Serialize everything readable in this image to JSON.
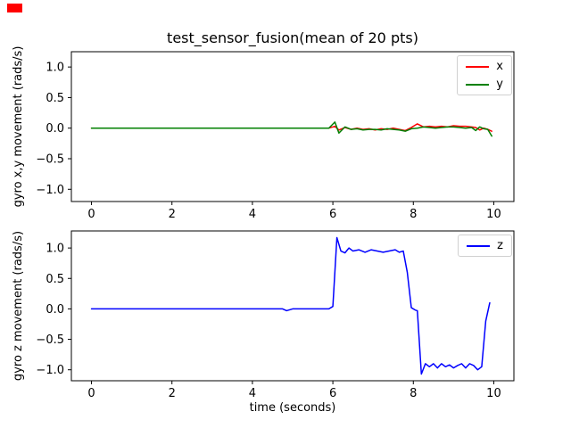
{
  "window": {
    "red_marker_color": "#ff0000"
  },
  "chart_data": [
    {
      "type": "line",
      "title": "test_sensor_fusion(mean of 20 pts)",
      "xlabel": "",
      "ylabel": "gyro x,y movement (rads/s)",
      "xlim": [
        -0.5,
        10.5
      ],
      "ylim": [
        -1.2,
        1.25
      ],
      "grid": false,
      "legend_position": "upper right",
      "xticks": [
        0,
        2,
        4,
        6,
        8,
        10
      ],
      "xticklabels": [
        "0",
        "2",
        "4",
        "6",
        "8",
        "10"
      ],
      "yticks": [
        -1.0,
        -0.5,
        0.0,
        0.5,
        1.0
      ],
      "yticklabels": [
        "−1.0",
        "−0.5",
        "0.0",
        "0.5",
        "1.0"
      ],
      "series": [
        {
          "name": "x",
          "color": "#ff0000",
          "x": [
            0,
            0.5,
            1,
            1.5,
            2,
            2.5,
            3,
            3.5,
            4,
            4.5,
            5,
            5.5,
            5.9,
            6.05,
            6.15,
            6.3,
            6.45,
            6.6,
            6.75,
            6.9,
            7.05,
            7.2,
            7.35,
            7.5,
            7.65,
            7.8,
            7.95,
            8.1,
            8.25,
            8.4,
            8.55,
            8.7,
            8.85,
            9.0,
            9.15,
            9.3,
            9.45,
            9.55,
            9.65,
            9.75,
            9.85,
            9.95
          ],
          "y": [
            0,
            0,
            0,
            0,
            0,
            0,
            0,
            0,
            0,
            0,
            0,
            0,
            0,
            0.03,
            -0.03,
            0.01,
            -0.02,
            0.0,
            -0.02,
            -0.01,
            -0.03,
            -0.01,
            -0.02,
            0.0,
            -0.02,
            -0.04,
            0.01,
            0.07,
            0.02,
            0.03,
            0.02,
            0.03,
            0.02,
            0.04,
            0.03,
            0.03,
            0.02,
            0.01,
            -0.03,
            0.0,
            -0.02,
            -0.05
          ]
        },
        {
          "name": "y",
          "color": "#008000",
          "x": [
            0,
            0.5,
            1,
            1.5,
            2,
            2.5,
            3,
            3.5,
            4,
            4.5,
            5,
            5.5,
            5.9,
            6.05,
            6.15,
            6.3,
            6.45,
            6.6,
            6.75,
            6.9,
            7.05,
            7.2,
            7.35,
            7.5,
            7.65,
            7.8,
            7.95,
            8.1,
            8.25,
            8.4,
            8.55,
            8.7,
            8.85,
            9.0,
            9.15,
            9.3,
            9.45,
            9.55,
            9.65,
            9.75,
            9.85,
            9.95
          ],
          "y": [
            0,
            0,
            0,
            0,
            0,
            0,
            0,
            0,
            0,
            0,
            0,
            0,
            0,
            0.1,
            -0.08,
            0.02,
            -0.02,
            -0.01,
            -0.03,
            -0.02,
            -0.02,
            -0.03,
            -0.01,
            -0.02,
            -0.03,
            -0.05,
            -0.01,
            0.0,
            0.02,
            0.01,
            0.0,
            0.01,
            0.02,
            0.02,
            0.01,
            0.0,
            0.01,
            -0.04,
            0.02,
            -0.01,
            -0.02,
            -0.13
          ]
        }
      ]
    },
    {
      "type": "line",
      "title": "",
      "xlabel": "time (seconds)",
      "ylabel": "gyro z movement (rads/s)",
      "xlim": [
        -0.5,
        10.5
      ],
      "ylim": [
        -1.18,
        1.28
      ],
      "grid": false,
      "legend_position": "upper right",
      "xticks": [
        0,
        2,
        4,
        6,
        8,
        10
      ],
      "xticklabels": [
        "0",
        "2",
        "4",
        "6",
        "8",
        "10"
      ],
      "yticks": [
        -1.0,
        -0.5,
        0.0,
        0.5,
        1.0
      ],
      "yticklabels": [
        "−1.0",
        "−0.5",
        "0.0",
        "0.5",
        "1.0"
      ],
      "series": [
        {
          "name": "z",
          "color": "#0000ff",
          "x": [
            0,
            0.5,
            1,
            1.5,
            2,
            2.5,
            3,
            3.5,
            4,
            4.5,
            4.75,
            4.85,
            5.0,
            5.5,
            5.9,
            6.0,
            6.1,
            6.2,
            6.3,
            6.4,
            6.5,
            6.65,
            6.8,
            6.95,
            7.1,
            7.25,
            7.4,
            7.55,
            7.65,
            7.75,
            7.85,
            7.95,
            8.05,
            8.1,
            8.2,
            8.3,
            8.4,
            8.5,
            8.6,
            8.7,
            8.8,
            8.9,
            9.0,
            9.1,
            9.2,
            9.3,
            9.4,
            9.5,
            9.6,
            9.7,
            9.8,
            9.9
          ],
          "y": [
            0,
            0,
            0,
            0,
            0,
            0,
            0,
            0,
            0,
            0,
            0,
            -0.03,
            0,
            0,
            0,
            0.04,
            1.17,
            0.95,
            0.92,
            1.0,
            0.95,
            0.97,
            0.93,
            0.97,
            0.95,
            0.93,
            0.95,
            0.97,
            0.93,
            0.95,
            0.6,
            0.02,
            -0.02,
            -0.03,
            -1.07,
            -0.9,
            -0.95,
            -0.9,
            -0.97,
            -0.9,
            -0.95,
            -0.92,
            -0.97,
            -0.93,
            -0.9,
            -0.97,
            -0.9,
            -0.93,
            -1.0,
            -0.95,
            -0.2,
            0.1
          ]
        }
      ]
    }
  ]
}
